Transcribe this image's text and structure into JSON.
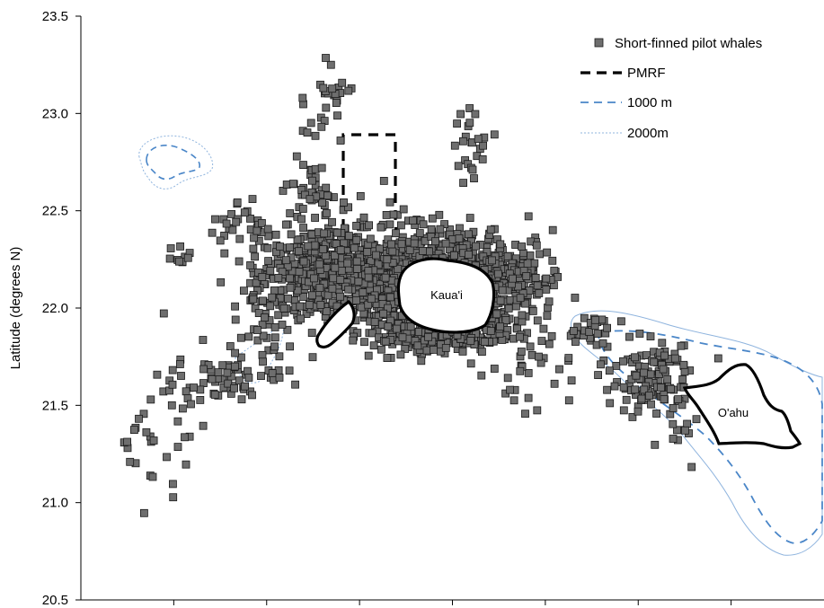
{
  "chart_data": {
    "type": "scatter",
    "ylabel": "Latitude (degrees N)",
    "xlabel": "",
    "ylim": [
      20.5,
      23.5
    ],
    "y_ticks": [
      "20.5",
      "21.0",
      "21.5",
      "22.0",
      "22.5",
      "23.0",
      "23.5"
    ],
    "x_ticks_count": 8,
    "legend": {
      "placement": "top-right",
      "entries": [
        {
          "name": "Short-finned pilot whales",
          "style": "gray-square"
        },
        {
          "name": "PMRF",
          "style": "black-dashed"
        },
        {
          "name": "1000 m",
          "style": "blue-dashed"
        },
        {
          "name": "2000m",
          "style": "blue-dotted"
        }
      ]
    },
    "islands": [
      {
        "name": "Kaua'i"
      },
      {
        "name": "O'ahu"
      }
    ],
    "colors": {
      "marker_fill": "#6e6e6e",
      "marker_stroke": "#1a1a1a",
      "pmrf": "#000000",
      "contour_1000": "#4a86c8",
      "contour_2000": "#8fb4de",
      "island": "#000000"
    }
  }
}
